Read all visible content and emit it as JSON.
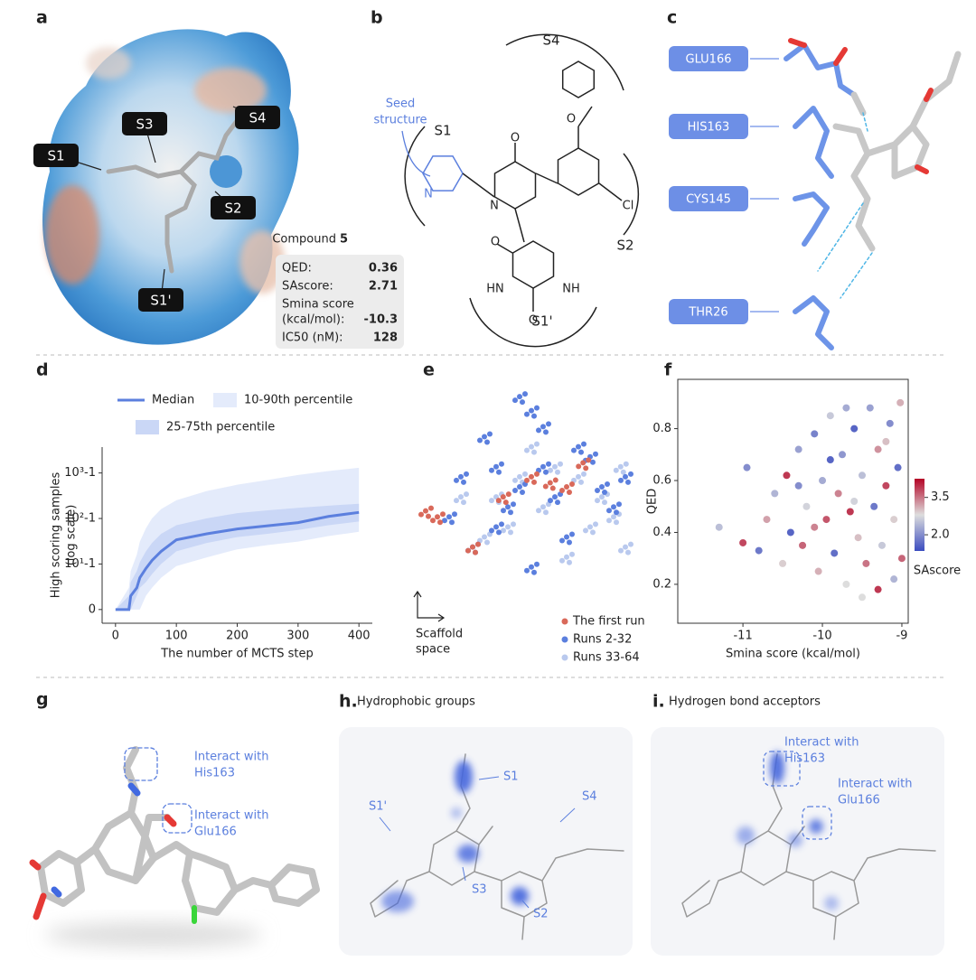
{
  "panel_labels": [
    "a",
    "b",
    "c",
    "d",
    "e",
    "f",
    "g",
    "h.",
    "i."
  ],
  "panel_a": {
    "sites": [
      "S1",
      "S3",
      "S4",
      "S2",
      "S1'"
    ],
    "compound": {
      "title": "Compound",
      "number": "5",
      "rows": [
        {
          "label": [
            "QED:"
          ],
          "value": "0.36"
        },
        {
          "label": [
            "SAscore:"
          ],
          "value": "2.71"
        },
        {
          "label": [
            "Smina score",
            "(kcal/mol):"
          ],
          "value": "-10.3"
        },
        {
          "label": [
            "IC50 (nM):"
          ],
          "value": "128"
        }
      ]
    }
  },
  "panel_b": {
    "sites": [
      "S4",
      "S1",
      "S2",
      "S1'"
    ],
    "seed": [
      "Seed",
      "structure"
    ],
    "atoms": [
      "N",
      "N",
      "O",
      "O",
      "Cl",
      "O",
      "HN",
      "NH",
      "O"
    ]
  },
  "panel_c": {
    "residues": [
      "GLU166",
      "HIS163",
      "CYS145",
      "THR26"
    ]
  },
  "chart_data": [
    {
      "type": "line",
      "xlabel": "The number of MCTS step",
      "ylabel": [
        "High scoring samples",
        "(log scale)"
      ],
      "yscale": "log1p",
      "x": [
        0,
        22,
        25,
        35,
        40,
        50,
        60,
        75,
        100,
        150,
        200,
        250,
        300,
        350,
        400
      ],
      "series": [
        {
          "name": "Median",
          "color": "#5b7fde",
          "values": [
            0,
            0,
            1,
            2,
            4,
            7,
            11,
            18,
            33,
            45,
            58,
            68,
            80,
            110,
            135
          ]
        }
      ],
      "bands": [
        {
          "name": "10-90th percentile",
          "color": "#e4ebfb",
          "lower": [
            0,
            0,
            0,
            0,
            0,
            1,
            2,
            4,
            8,
            13,
            20,
            25,
            30,
            40,
            50
          ],
          "upper": [
            0,
            2,
            6,
            15,
            30,
            60,
            100,
            160,
            250,
            400,
            550,
            700,
            900,
            1100,
            1300
          ]
        },
        {
          "name": "25-75th percentile",
          "color": "#cad7f6",
          "lower": [
            0,
            0,
            0,
            1,
            2,
            3,
            5,
            9,
            18,
            28,
            38,
            45,
            55,
            70,
            85
          ],
          "upper": [
            0,
            1,
            3,
            6,
            10,
            18,
            28,
            45,
            70,
            100,
            130,
            150,
            170,
            190,
            210
          ]
        }
      ],
      "xlim": [
        -22,
        422
      ],
      "xticks": [
        0,
        100,
        200,
        300,
        400
      ],
      "ylim": [
        -0.5,
        3700
      ],
      "yticks": [
        0,
        {
          "value": 9,
          "label": "10¹-1"
        },
        {
          "value": 99,
          "label": "10²-1"
        },
        {
          "value": 999,
          "label": "10³-1"
        }
      ]
    },
    {
      "type": "scatter",
      "axis_label": [
        "Scaffold",
        "space"
      ],
      "xlim": [
        0,
        100
      ],
      "ylim": [
        0,
        100
      ],
      "series": [
        {
          "name": "Runs 33-64",
          "color": "#b9c9ee",
          "x": [
            60,
            70,
            80,
            85,
            90,
            40,
            30,
            65,
            75,
            45,
            55,
            20,
            88,
            50,
            35
          ],
          "values": [
            60,
            55,
            45,
            35,
            20,
            30,
            25,
            15,
            30,
            55,
            40,
            45,
            60,
            70,
            45
          ]
        },
        {
          "name": "Runs 2-32",
          "color": "#5b7fde",
          "x": [
            45,
            50,
            55,
            30,
            35,
            20,
            70,
            75,
            80,
            60,
            40,
            15,
            25,
            85,
            90,
            50,
            65,
            35,
            45,
            55
          ],
          "values": [
            95,
            88,
            80,
            75,
            60,
            55,
            70,
            65,
            50,
            45,
            40,
            35,
            20,
            40,
            55,
            10,
            25,
            30,
            50,
            60
          ]
        },
        {
          "name": "The first run",
          "color": "#d9695a",
          "x": [
            50,
            58,
            72,
            5,
            10,
            38,
            65,
            25
          ],
          "values": [
            55,
            52,
            62,
            38,
            35,
            45,
            50,
            20
          ]
        }
      ],
      "legend_order": [
        2,
        1,
        0
      ]
    },
    {
      "type": "scatter",
      "xlabel": "Smina score (kcal/mol)",
      "ylabel": "QED",
      "x": [
        -11.3,
        -11.0,
        -10.95,
        -10.8,
        -10.7,
        -10.6,
        -10.5,
        -10.45,
        -10.4,
        -10.3,
        -10.25,
        -10.2,
        -10.1,
        -10.05,
        -10.0,
        -9.95,
        -9.9,
        -9.85,
        -9.8,
        -9.75,
        -9.7,
        -9.65,
        -9.6,
        -9.55,
        -9.5,
        -9.45,
        -9.4,
        -9.35,
        -9.3,
        -9.25,
        -9.2,
        -9.15,
        -9.1,
        -9.05,
        -9.0,
        -9.02,
        -9.1,
        -9.3,
        -9.5,
        -9.7,
        -9.9,
        -10.1,
        -10.3,
        -9.6,
        -9.2
      ],
      "values": [
        0.42,
        0.36,
        0.65,
        0.33,
        0.45,
        0.55,
        0.28,
        0.62,
        0.4,
        0.72,
        0.35,
        0.5,
        0.78,
        0.25,
        0.6,
        0.45,
        0.85,
        0.32,
        0.55,
        0.7,
        0.2,
        0.48,
        0.8,
        0.38,
        0.62,
        0.28,
        0.88,
        0.5,
        0.72,
        0.35,
        0.58,
        0.82,
        0.45,
        0.65,
        0.3,
        0.9,
        0.22,
        0.18,
        0.15,
        0.88,
        0.68,
        0.42,
        0.58,
        0.52,
        0.75
      ],
      "color_values": [
        2.5,
        3.8,
        2.0,
        1.8,
        3.2,
        2.4,
        2.9,
        3.9,
        1.6,
        2.2,
        3.6,
        2.7,
        1.9,
        3.1,
        2.3,
        3.7,
        2.6,
        1.7,
        3.4,
        2.1,
        2.8,
        3.9,
        1.6,
        3.0,
        2.5,
        3.5,
        2.2,
        1.8,
        3.3,
        2.6,
        3.8,
        2.0,
        2.9,
        1.7,
        3.6,
        3.1,
        2.4,
        3.9,
        2.8,
        2.3,
        1.6,
        3.4,
        2.0,
        2.7,
        3.0
      ],
      "colorbar": {
        "label": "SAscore",
        "lim": [
          1.35,
          4.25
        ],
        "ticks": [
          {
            "value": 2,
            "label": "2.0"
          },
          3.5
        ],
        "colors": [
          "#3b4cc0",
          "#dddddd",
          "#b40426"
        ]
      },
      "xlim": [
        -11.82,
        -8.92
      ],
      "xticks": [
        -11,
        -10,
        -9
      ],
      "ylim": [
        0.05,
        0.99
      ],
      "yticks": [
        0.2,
        0.4,
        0.6,
        0.8
      ]
    }
  ],
  "panel_g": {
    "notes": [
      [
        "Interact with",
        "His163"
      ],
      [
        "Interact with",
        "Glu166"
      ]
    ]
  },
  "panel_h": {
    "title": "Hydrophobic groups",
    "sites": [
      "S1",
      "S1'",
      "S4",
      "S3",
      "S2"
    ]
  },
  "panel_i": {
    "title": "Hydrogen bond acceptors",
    "notes": [
      [
        "Interact with",
        "His163"
      ],
      [
        "Interact with",
        "Glu166"
      ]
    ]
  }
}
